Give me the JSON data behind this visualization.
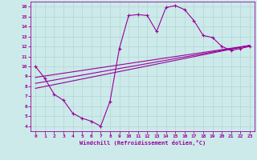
{
  "xlabel": "Windchill (Refroidissement éolien,°C)",
  "bg_color": "#cceaea",
  "line_color": "#990099",
  "grid_color": "#aadddd",
  "xlim": [
    -0.5,
    23.5
  ],
  "ylim": [
    3.5,
    16.5
  ],
  "xticks": [
    0,
    1,
    2,
    3,
    4,
    5,
    6,
    7,
    8,
    9,
    10,
    11,
    12,
    13,
    14,
    15,
    16,
    17,
    18,
    19,
    20,
    21,
    22,
    23
  ],
  "yticks": [
    4,
    5,
    6,
    7,
    8,
    9,
    10,
    11,
    12,
    13,
    14,
    15,
    16
  ],
  "main_x": [
    0,
    1,
    2,
    3,
    4,
    5,
    6,
    7,
    8,
    9,
    10,
    11,
    12,
    13,
    14,
    15,
    16,
    17,
    18,
    19,
    20,
    21,
    22,
    23
  ],
  "main_y": [
    10,
    8.8,
    7.2,
    6.6,
    5.3,
    4.8,
    4.5,
    4.0,
    6.5,
    11.8,
    15.1,
    15.2,
    15.1,
    13.5,
    15.9,
    16.1,
    15.7,
    14.6,
    13.1,
    12.9,
    12.0,
    11.6,
    11.8,
    12.0
  ],
  "line2_x": [
    0,
    23
  ],
  "line2_y": [
    7.8,
    12.1
  ],
  "line3_x": [
    0,
    23
  ],
  "line3_y": [
    8.3,
    12.1
  ],
  "line4_x": [
    0,
    23
  ],
  "line4_y": [
    8.9,
    12.1
  ]
}
